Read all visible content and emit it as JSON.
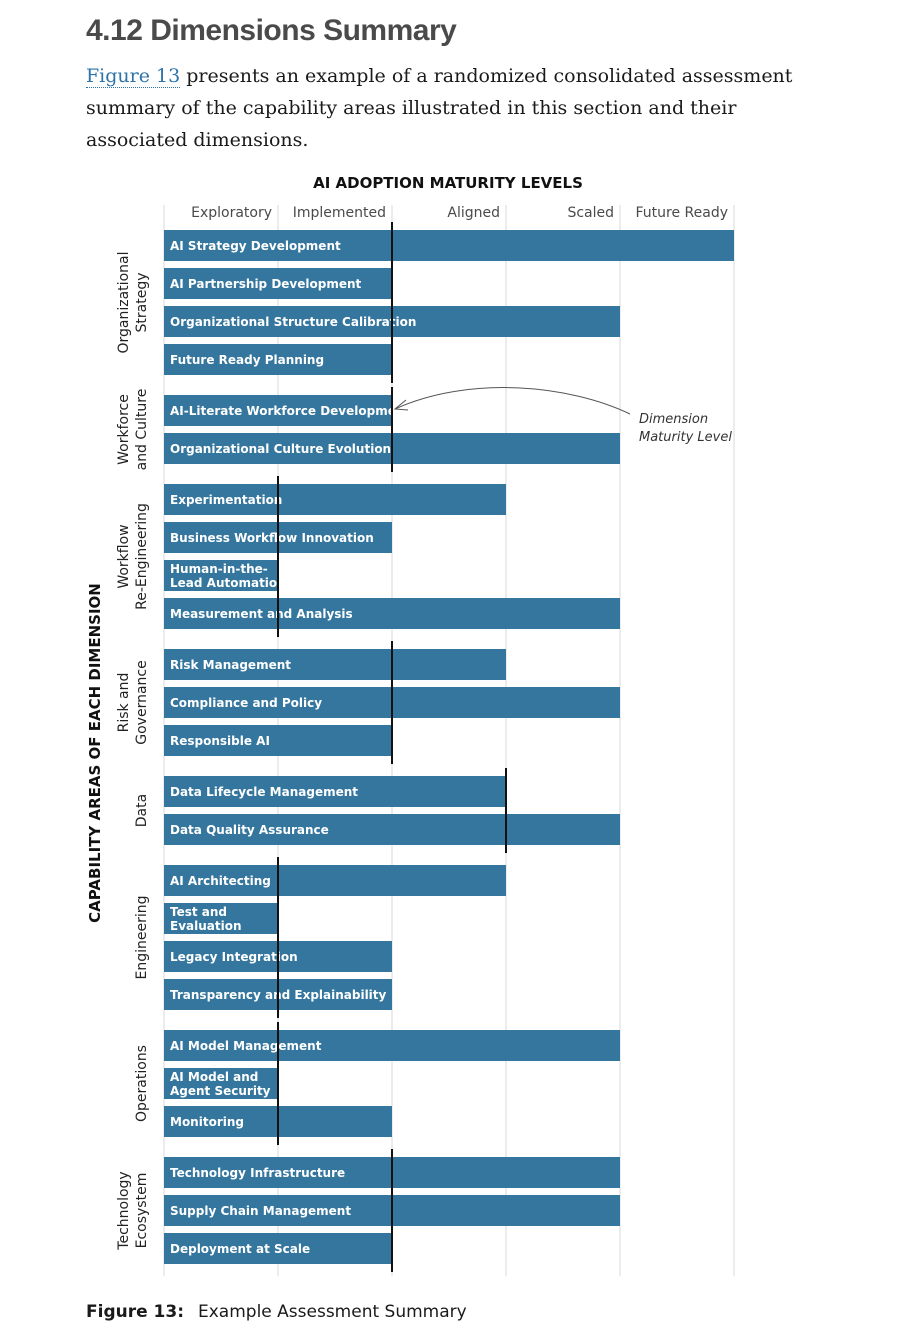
{
  "section": {
    "title": "4.12 Dimensions Summary",
    "intro_link": "Figure 13",
    "intro_text": " presents an example of a randomized consolidated assessment summary of the capability areas illustrated in this section and their associated dimensions."
  },
  "caption": {
    "label": "Figure 13:",
    "text": "Example Assessment Summary"
  },
  "colors": {
    "bar": "#34769e",
    "marker": "#111111",
    "grid": "#d9d9d9",
    "bar_text": "#ffffff",
    "axis_text": "#4a4a4a"
  },
  "chart_data": {
    "type": "bar",
    "orientation": "horizontal",
    "title": "AI ADOPTION MATURITY LEVELS",
    "ylabel": "CAPABILITY AREAS OF EACH DIMENSION",
    "levels": [
      "Exploratory",
      "Implemented",
      "Aligned",
      "Scaled",
      "Future Ready"
    ],
    "xlim": [
      0,
      5
    ],
    "annotation": {
      "lines": [
        "Dimension",
        "Maturity Level"
      ]
    },
    "dimensions": [
      {
        "name_lines": [
          "Organizational",
          "Strategy"
        ],
        "marker": 2,
        "items": [
          {
            "lines": [
              "AI Strategy Development"
            ],
            "value": 5
          },
          {
            "lines": [
              "AI Partnership Development"
            ],
            "value": 2
          },
          {
            "lines": [
              "Organizational Structure Calibration"
            ],
            "value": 4
          },
          {
            "lines": [
              "Future Ready Planning"
            ],
            "value": 2
          }
        ]
      },
      {
        "name_lines": [
          "Workforce",
          "and Culture"
        ],
        "marker": 2,
        "items": [
          {
            "lines": [
              "AI-Literate Workforce Development"
            ],
            "value": 2
          },
          {
            "lines": [
              "Organizational Culture Evolution"
            ],
            "value": 4
          }
        ]
      },
      {
        "name_lines": [
          "Workflow",
          "Re-Engineering"
        ],
        "marker": 1,
        "items": [
          {
            "lines": [
              "Experimentation"
            ],
            "value": 3
          },
          {
            "lines": [
              "Business Workflow Innovation"
            ],
            "value": 2
          },
          {
            "lines": [
              "Human-in-the-",
              "Lead Automation"
            ],
            "value": 1
          },
          {
            "lines": [
              "Measurement and Analysis"
            ],
            "value": 4
          }
        ]
      },
      {
        "name_lines": [
          "Risk and",
          "Governance"
        ],
        "marker": 2,
        "items": [
          {
            "lines": [
              "Risk Management"
            ],
            "value": 3
          },
          {
            "lines": [
              "Compliance and Policy"
            ],
            "value": 4
          },
          {
            "lines": [
              "Responsible AI"
            ],
            "value": 2
          }
        ]
      },
      {
        "name_lines": [
          "Data"
        ],
        "marker": 3,
        "items": [
          {
            "lines": [
              "Data Lifecycle Management"
            ],
            "value": 3
          },
          {
            "lines": [
              "Data Quality Assurance"
            ],
            "value": 4
          }
        ]
      },
      {
        "name_lines": [
          "Engineering"
        ],
        "marker": 1,
        "items": [
          {
            "lines": [
              "AI Architecting"
            ],
            "value": 3
          },
          {
            "lines": [
              "Test and",
              "Evaluation"
            ],
            "value": 1
          },
          {
            "lines": [
              "Legacy Integration"
            ],
            "value": 2
          },
          {
            "lines": [
              "Transparency and Explainability"
            ],
            "value": 2
          }
        ]
      },
      {
        "name_lines": [
          "Operations"
        ],
        "marker": 1,
        "items": [
          {
            "lines": [
              "AI Model Management"
            ],
            "value": 4
          },
          {
            "lines": [
              "AI Model and",
              "Agent Security"
            ],
            "value": 1
          },
          {
            "lines": [
              "Monitoring"
            ],
            "value": 2
          }
        ]
      },
      {
        "name_lines": [
          "Technology",
          "Ecosystem"
        ],
        "marker": 2,
        "items": [
          {
            "lines": [
              "Technology Infrastructure"
            ],
            "value": 4
          },
          {
            "lines": [
              "Supply Chain Management"
            ],
            "value": 4
          },
          {
            "lines": [
              "Deployment at Scale"
            ],
            "value": 2
          }
        ]
      }
    ]
  }
}
